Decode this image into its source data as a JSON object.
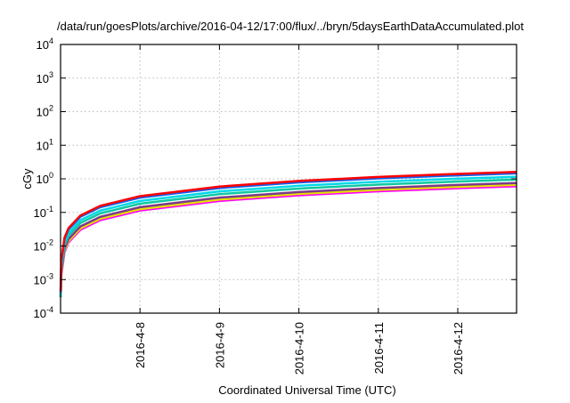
{
  "chart_data": {
    "type": "line",
    "title": "/data/run/goesPlots/archive/2016-04-12/17:00/flux/../bryn/5daysEarthDataAccumulated.plot",
    "xlabel": "Coordinated Universal Time (UTC)",
    "ylabel": "cGy",
    "x_units": "days since 2016-04-07 00:00 UTC",
    "xlim": [
      0,
      5.74
    ],
    "ylim": [
      0.0001,
      10000
    ],
    "yscale": "log",
    "grid": true,
    "legend": "none",
    "x_ticks": [
      {
        "value": 1,
        "label": "2016-4-8"
      },
      {
        "value": 2,
        "label": "2016-4-9"
      },
      {
        "value": 3,
        "label": "2016-4-10"
      },
      {
        "value": 4,
        "label": "2016-4-11"
      },
      {
        "value": 5,
        "label": "2016-4-12"
      }
    ],
    "y_ticks": [
      {
        "value": 0.0001,
        "base": "10",
        "exp": "-4"
      },
      {
        "value": 0.001,
        "base": "10",
        "exp": "-3"
      },
      {
        "value": 0.01,
        "base": "10",
        "exp": "-2"
      },
      {
        "value": 0.1,
        "base": "10",
        "exp": "-1"
      },
      {
        "value": 1,
        "base": "10",
        "exp": "0"
      },
      {
        "value": 10,
        "base": "10",
        "exp": "1"
      },
      {
        "value": 100,
        "base": "10",
        "exp": "2"
      },
      {
        "value": 1000,
        "base": "10",
        "exp": "3"
      },
      {
        "value": 10000,
        "base": "10",
        "exp": "4"
      }
    ],
    "x": [
      0.01,
      0.05,
      0.1,
      0.25,
      0.5,
      1,
      2,
      3,
      4,
      5,
      5.74
    ],
    "series": [
      {
        "color": "#ff00ff",
        "values": [
          0.0014,
          0.0066,
          0.0128,
          0.0305,
          0.059,
          0.114,
          0.22,
          0.324,
          0.426,
          0.526,
          0.6
        ]
      },
      {
        "color": "#e8e000",
        "values": [
          0.0016,
          0.0073,
          0.0141,
          0.0336,
          0.0649,
          0.125,
          0.242,
          0.356,
          0.469,
          0.579,
          0.66
        ]
      },
      {
        "color": "#7a3a8a",
        "values": [
          0.0018,
          0.0083,
          0.016,
          0.0382,
          0.0738,
          0.143,
          0.275,
          0.405,
          0.533,
          0.658,
          0.75
        ]
      },
      {
        "color": "#10c8a0",
        "values": [
          0.0023,
          0.0105,
          0.0202,
          0.0484,
          0.0935,
          0.181,
          0.349,
          0.513,
          0.675,
          0.833,
          0.95
        ]
      },
      {
        "color": "#00d8e8",
        "values": [
          0.0027,
          0.0127,
          0.0245,
          0.0585,
          0.113,
          0.219,
          0.422,
          0.621,
          0.817,
          1.01,
          1.15
        ]
      },
      {
        "color": "#1060f0",
        "values": [
          0.0035,
          0.016,
          0.031,
          0.074,
          0.143,
          0.276,
          0.532,
          0.783,
          1.03,
          1.27,
          1.45
        ]
      },
      {
        "color": "#ff0000",
        "values": [
          0.0038,
          0.0177,
          0.034,
          0.081,
          0.157,
          0.304,
          0.588,
          0.864,
          1.136,
          1.4,
          1.6
        ]
      }
    ]
  }
}
